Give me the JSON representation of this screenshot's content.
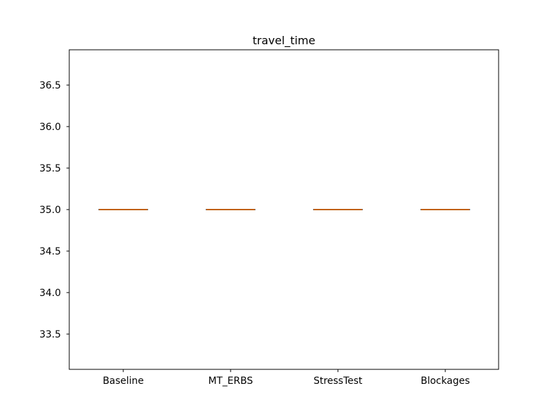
{
  "chart_data": {
    "type": "box",
    "title": "travel_time",
    "xlabel": "",
    "ylabel": "",
    "categories": [
      "Baseline",
      "MT_ERBS",
      "StressTest",
      "Blockages"
    ],
    "boxes": [
      {
        "category": "Baseline",
        "min": 35.0,
        "q1": 35.0,
        "median": 35.0,
        "q3": 35.0,
        "max": 35.0
      },
      {
        "category": "MT_ERBS",
        "min": 35.0,
        "q1": 35.0,
        "median": 35.0,
        "q3": 35.0,
        "max": 35.0
      },
      {
        "category": "StressTest",
        "min": 35.0,
        "q1": 35.0,
        "median": 35.0,
        "q3": 35.0,
        "max": 35.0
      },
      {
        "category": "Blockages",
        "min": 35.0,
        "q1": 35.0,
        "median": 35.0,
        "q3": 35.0,
        "max": 35.0
      }
    ],
    "ylim": [
      33.075,
      36.925
    ],
    "yticks": [
      33.5,
      34.0,
      34.5,
      35.0,
      35.5,
      36.0,
      36.5
    ],
    "ytick_labels": [
      "33.5",
      "34.0",
      "34.5",
      "35.0",
      "35.5",
      "36.0",
      "36.5"
    ],
    "grid": false,
    "colors": {
      "box": "#000000",
      "median": "#ff7f0e",
      "axis": "#000000"
    }
  }
}
